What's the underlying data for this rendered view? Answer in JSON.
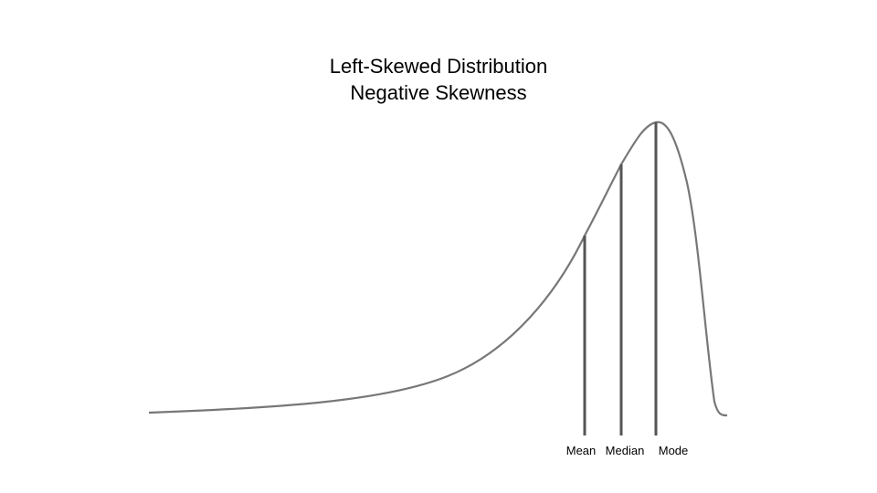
{
  "title": "Left-Skewed Distribution",
  "subtitle": "Negative Skewness",
  "markers": [
    {
      "id": "mean",
      "label": "Mean"
    },
    {
      "id": "median",
      "label": "Median"
    },
    {
      "id": "mode",
      "label": "Mode"
    }
  ],
  "colors": {
    "curve": "#777777",
    "marker_line": "#555555",
    "text": "#000000",
    "background": "#ffffff"
  }
}
